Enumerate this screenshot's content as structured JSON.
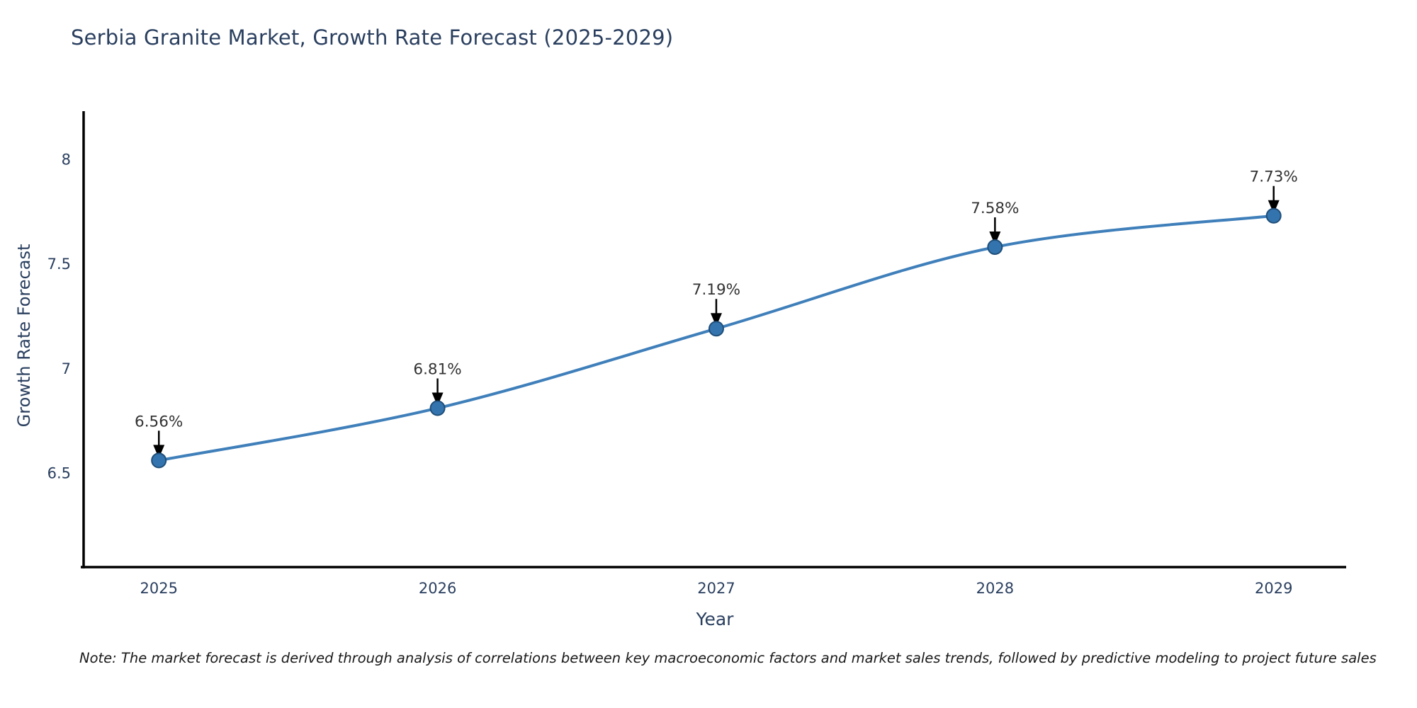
{
  "chart_data": {
    "type": "line",
    "title": "Serbia Granite Market, Growth Rate Forecast (2025-2029)",
    "xlabel": "Year",
    "ylabel": "Growth Rate Forecast",
    "x": [
      2025,
      2026,
      2027,
      2028,
      2029
    ],
    "categories": [
      "2025",
      "2026",
      "2027",
      "2028",
      "2029"
    ],
    "series": [
      {
        "name": "Growth Rate Forecast",
        "values": [
          6.56,
          6.81,
          7.19,
          7.58,
          7.73
        ],
        "data_labels": [
          "6.56%",
          "6.81%",
          "7.19%",
          "7.58%",
          "7.73%"
        ]
      }
    ],
    "yticks": [
      6.5,
      7,
      7.5,
      8
    ],
    "ytick_labels": [
      "6.5",
      "7",
      "7.5",
      "8"
    ],
    "ylim": [
      6.05,
      8.23
    ],
    "xlim": [
      2024.73,
      2029.26
    ],
    "grid": false,
    "legend_position": "none",
    "line_shape": "spline",
    "colors": {
      "line": "#3f7fba",
      "marker_fill": "#3474ae",
      "marker_edge": "#1f4e79",
      "axis_line": "#000000",
      "tick_text": "#2a3f5f",
      "annotation_text": "#333333",
      "arrow": "#000000",
      "title_text": "#2a3f5f",
      "background": "#ffffff"
    }
  },
  "note": {
    "text": "Note: The market forecast is derived through analysis of correlations between key macroeconomic factors and market sales trends, followed by predictive modeling to project future sales"
  }
}
